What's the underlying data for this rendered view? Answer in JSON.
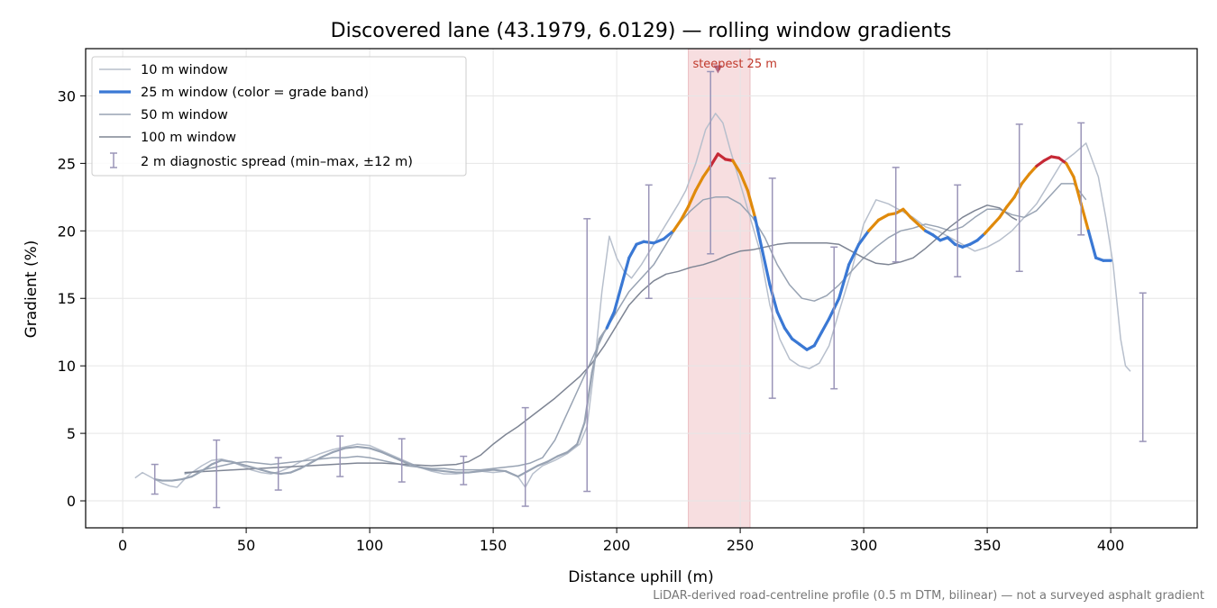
{
  "chart_data": {
    "type": "line",
    "title": "Discovered lane (43.1979, 6.0129) — rolling window gradients",
    "xlabel": "Distance uphill (m)",
    "ylabel": "Gradient (%)",
    "xlim": [
      -15,
      435
    ],
    "ylim": [
      -2,
      33.5
    ],
    "xticks": [
      "0",
      "50",
      "100",
      "150",
      "200",
      "250",
      "300",
      "350",
      "400"
    ],
    "yticks": [
      "0",
      "5",
      "10",
      "15",
      "20",
      "25",
      "30"
    ],
    "grid": true,
    "legend_position": "top-left",
    "footnote": "LiDAR-derived road-centreline profile (0.5 m DTM, bilinear) — not a surveyed asphalt gradient",
    "colors": {
      "w10": "#b7bfcc",
      "w25_low": "#3a78d4",
      "w25_mid": "#e08a0b",
      "w25_high": "#c62936",
      "w50": "#98a3b3",
      "w100": "#7e8594",
      "spread": "#9a95b8",
      "highlight": "#f4d3d6",
      "annotation": "#c0392b"
    },
    "grade_bands": [
      20,
      25
    ],
    "highlight": {
      "x0": 229,
      "x1": 254,
      "label": "steepest 25 m",
      "peak_x": 241,
      "peak_y": 32
    },
    "series": [
      {
        "name": "10 m window",
        "x": [
          5,
          8,
          10,
          13,
          16,
          19,
          22,
          25,
          28,
          32,
          36,
          40,
          44,
          48,
          52,
          56,
          60,
          64,
          68,
          72,
          76,
          80,
          85,
          90,
          95,
          100,
          105,
          110,
          115,
          120,
          125,
          130,
          135,
          140,
          145,
          150,
          155,
          160,
          163,
          166,
          170,
          175,
          180,
          185,
          188,
          191,
          194,
          197,
          200,
          203,
          206,
          210,
          215,
          220,
          225,
          228,
          232,
          236,
          240,
          243,
          246,
          250,
          254,
          258,
          262,
          266,
          270,
          274,
          278,
          282,
          286,
          290,
          295,
          300,
          305,
          310,
          315,
          320,
          325,
          330,
          335,
          340,
          345,
          350,
          355,
          360,
          365,
          370,
          375,
          380,
          385,
          390,
          395,
          398,
          401,
          404,
          406,
          408
        ],
        "values": [
          1.7,
          2.1,
          1.9,
          1.6,
          1.3,
          1.1,
          1.0,
          1.6,
          2.1,
          2.6,
          3.0,
          3.1,
          2.9,
          2.6,
          2.3,
          2.1,
          2.0,
          2.2,
          2.5,
          2.9,
          3.2,
          3.5,
          3.8,
          4.0,
          4.2,
          4.1,
          3.7,
          3.3,
          2.9,
          2.5,
          2.2,
          2.0,
          2.0,
          2.1,
          2.2,
          2.1,
          2.2,
          1.8,
          1.0,
          2.0,
          2.6,
          3.0,
          3.5,
          4.2,
          5.5,
          10.0,
          15.5,
          19.6,
          18.0,
          17.0,
          16.5,
          17.5,
          19.0,
          20.5,
          22.0,
          23.0,
          25.0,
          27.5,
          28.7,
          28.0,
          26.0,
          23.5,
          21.0,
          18.5,
          14.5,
          12.0,
          10.5,
          10.0,
          9.8,
          10.2,
          11.5,
          14.0,
          17.0,
          20.5,
          22.3,
          22.0,
          21.5,
          21.0,
          20.3,
          20.0,
          19.5,
          19.0,
          18.5,
          18.8,
          19.3,
          20.0,
          21.0,
          22.0,
          23.5,
          25.0,
          25.7,
          26.5,
          24.0,
          21.0,
          17.5,
          12.0,
          10.0,
          9.6
        ]
      },
      {
        "name": "25 m window (color = grade band)",
        "x": [
          13,
          16,
          20,
          24,
          28,
          32,
          36,
          40,
          44,
          48,
          52,
          56,
          60,
          64,
          68,
          72,
          76,
          80,
          85,
          90,
          95,
          100,
          105,
          110,
          115,
          120,
          125,
          130,
          135,
          140,
          145,
          150,
          155,
          160,
          164,
          168,
          172,
          176,
          180,
          184,
          187,
          190,
          193,
          196,
          199,
          202,
          205,
          208,
          211,
          215,
          219,
          223,
          226,
          229,
          232,
          235,
          238,
          241,
          244,
          247,
          250,
          253,
          256,
          259,
          262,
          265,
          268,
          271,
          274,
          277,
          280,
          283,
          286,
          290,
          294,
          298,
          302,
          306,
          310,
          313,
          316,
          319,
          322,
          325,
          328,
          331,
          334,
          337,
          340,
          343,
          346,
          349,
          352,
          355,
          358,
          361,
          364,
          367,
          370,
          373,
          376,
          379,
          382,
          385,
          388,
          391,
          394,
          397,
          400
        ],
        "values": [
          1.6,
          1.5,
          1.5,
          1.6,
          1.8,
          2.2,
          2.7,
          3.0,
          2.9,
          2.7,
          2.5,
          2.3,
          2.1,
          2.0,
          2.1,
          2.4,
          2.8,
          3.2,
          3.6,
          3.9,
          4.0,
          3.9,
          3.6,
          3.2,
          2.8,
          2.5,
          2.3,
          2.2,
          2.1,
          2.1,
          2.2,
          2.3,
          2.2,
          1.8,
          2.2,
          2.6,
          2.9,
          3.3,
          3.6,
          4.2,
          5.8,
          9.5,
          12.0,
          12.8,
          14.0,
          16.0,
          18.0,
          19.0,
          19.2,
          19.1,
          19.4,
          20.0,
          20.8,
          21.8,
          23.0,
          24.0,
          24.8,
          25.7,
          25.3,
          25.2,
          24.3,
          23.0,
          21.0,
          18.5,
          16.0,
          14.0,
          12.8,
          12.0,
          11.6,
          11.2,
          11.5,
          12.5,
          13.5,
          15.0,
          17.5,
          19.0,
          20.0,
          20.8,
          21.2,
          21.3,
          21.6,
          21.0,
          20.5,
          20.0,
          19.7,
          19.3,
          19.5,
          19.0,
          18.8,
          19.0,
          19.3,
          19.8,
          20.4,
          21.0,
          21.8,
          22.5,
          23.5,
          24.2,
          24.8,
          25.2,
          25.5,
          25.4,
          25.0,
          24.0,
          22.0,
          20.0,
          18.0,
          17.8,
          17.8
        ]
      },
      {
        "name": "50 m window",
        "x": [
          25,
          30,
          35,
          40,
          45,
          50,
          55,
          60,
          65,
          70,
          75,
          80,
          85,
          90,
          95,
          100,
          105,
          110,
          115,
          120,
          125,
          130,
          135,
          140,
          145,
          150,
          155,
          160,
          165,
          170,
          175,
          180,
          185,
          190,
          195,
          200,
          205,
          210,
          215,
          220,
          225,
          230,
          235,
          240,
          245,
          250,
          255,
          260,
          265,
          270,
          275,
          280,
          285,
          290,
          295,
          300,
          305,
          310,
          315,
          320,
          325,
          330,
          335,
          340,
          345,
          350,
          355,
          360,
          365,
          370,
          375,
          380,
          385,
          390
        ],
        "values": [
          2.0,
          2.2,
          2.4,
          2.6,
          2.8,
          2.9,
          2.8,
          2.7,
          2.8,
          2.9,
          3.0,
          3.1,
          3.2,
          3.2,
          3.3,
          3.2,
          3.0,
          2.8,
          2.6,
          2.5,
          2.4,
          2.4,
          2.3,
          2.3,
          2.3,
          2.4,
          2.5,
          2.6,
          2.8,
          3.2,
          4.5,
          6.5,
          8.5,
          10.5,
          12.5,
          14.0,
          15.5,
          16.5,
          17.5,
          19.0,
          20.5,
          21.5,
          22.3,
          22.5,
          22.5,
          22.0,
          21.0,
          19.5,
          17.5,
          16.0,
          15.0,
          14.8,
          15.2,
          16.0,
          17.0,
          18.0,
          18.8,
          19.5,
          20.0,
          20.2,
          20.5,
          20.3,
          20.0,
          20.3,
          21.0,
          21.6,
          21.6,
          21.2,
          21.0,
          21.5,
          22.5,
          23.5,
          23.5,
          22.3
        ]
      },
      {
        "name": "100 m window",
        "x": [
          25,
          35,
          45,
          55,
          65,
          75,
          85,
          95,
          105,
          115,
          125,
          135,
          140,
          145,
          150,
          155,
          160,
          165,
          170,
          175,
          180,
          185,
          190,
          195,
          200,
          205,
          210,
          215,
          220,
          225,
          230,
          235,
          240,
          245,
          250,
          255,
          260,
          265,
          270,
          275,
          280,
          285,
          290,
          295,
          300,
          305,
          310,
          315,
          320,
          325,
          330,
          335,
          340,
          345,
          350,
          355,
          360,
          362
        ],
        "values": [
          2.1,
          2.2,
          2.3,
          2.4,
          2.5,
          2.6,
          2.7,
          2.8,
          2.8,
          2.7,
          2.6,
          2.7,
          2.9,
          3.4,
          4.2,
          4.9,
          5.5,
          6.2,
          6.9,
          7.6,
          8.4,
          9.2,
          10.2,
          11.5,
          13.0,
          14.5,
          15.5,
          16.3,
          16.8,
          17.0,
          17.3,
          17.5,
          17.8,
          18.2,
          18.5,
          18.6,
          18.8,
          19.0,
          19.1,
          19.1,
          19.1,
          19.1,
          19.0,
          18.5,
          18.0,
          17.6,
          17.5,
          17.7,
          18.0,
          18.7,
          19.5,
          20.3,
          21.0,
          21.5,
          21.9,
          21.7,
          21.0,
          20.8
        ]
      },
      {
        "name": "2 m diagnostic spread (min–max, ±12 m)",
        "x": [
          13,
          38,
          63,
          88,
          113,
          138,
          163,
          188,
          213,
          238,
          263,
          288,
          313,
          338,
          363,
          388,
          413
        ],
        "lower": [
          0.5,
          -0.5,
          0.8,
          1.8,
          1.4,
          1.2,
          -0.4,
          0.7,
          15.0,
          18.3,
          7.6,
          8.3,
          17.7,
          16.6,
          17.0,
          19.7,
          4.4
        ],
        "upper": [
          2.7,
          4.5,
          3.2,
          4.8,
          4.6,
          3.3,
          6.9,
          20.9,
          23.4,
          31.8,
          23.9,
          18.8,
          24.7,
          23.4,
          27.9,
          28.0,
          15.4
        ]
      }
    ]
  }
}
